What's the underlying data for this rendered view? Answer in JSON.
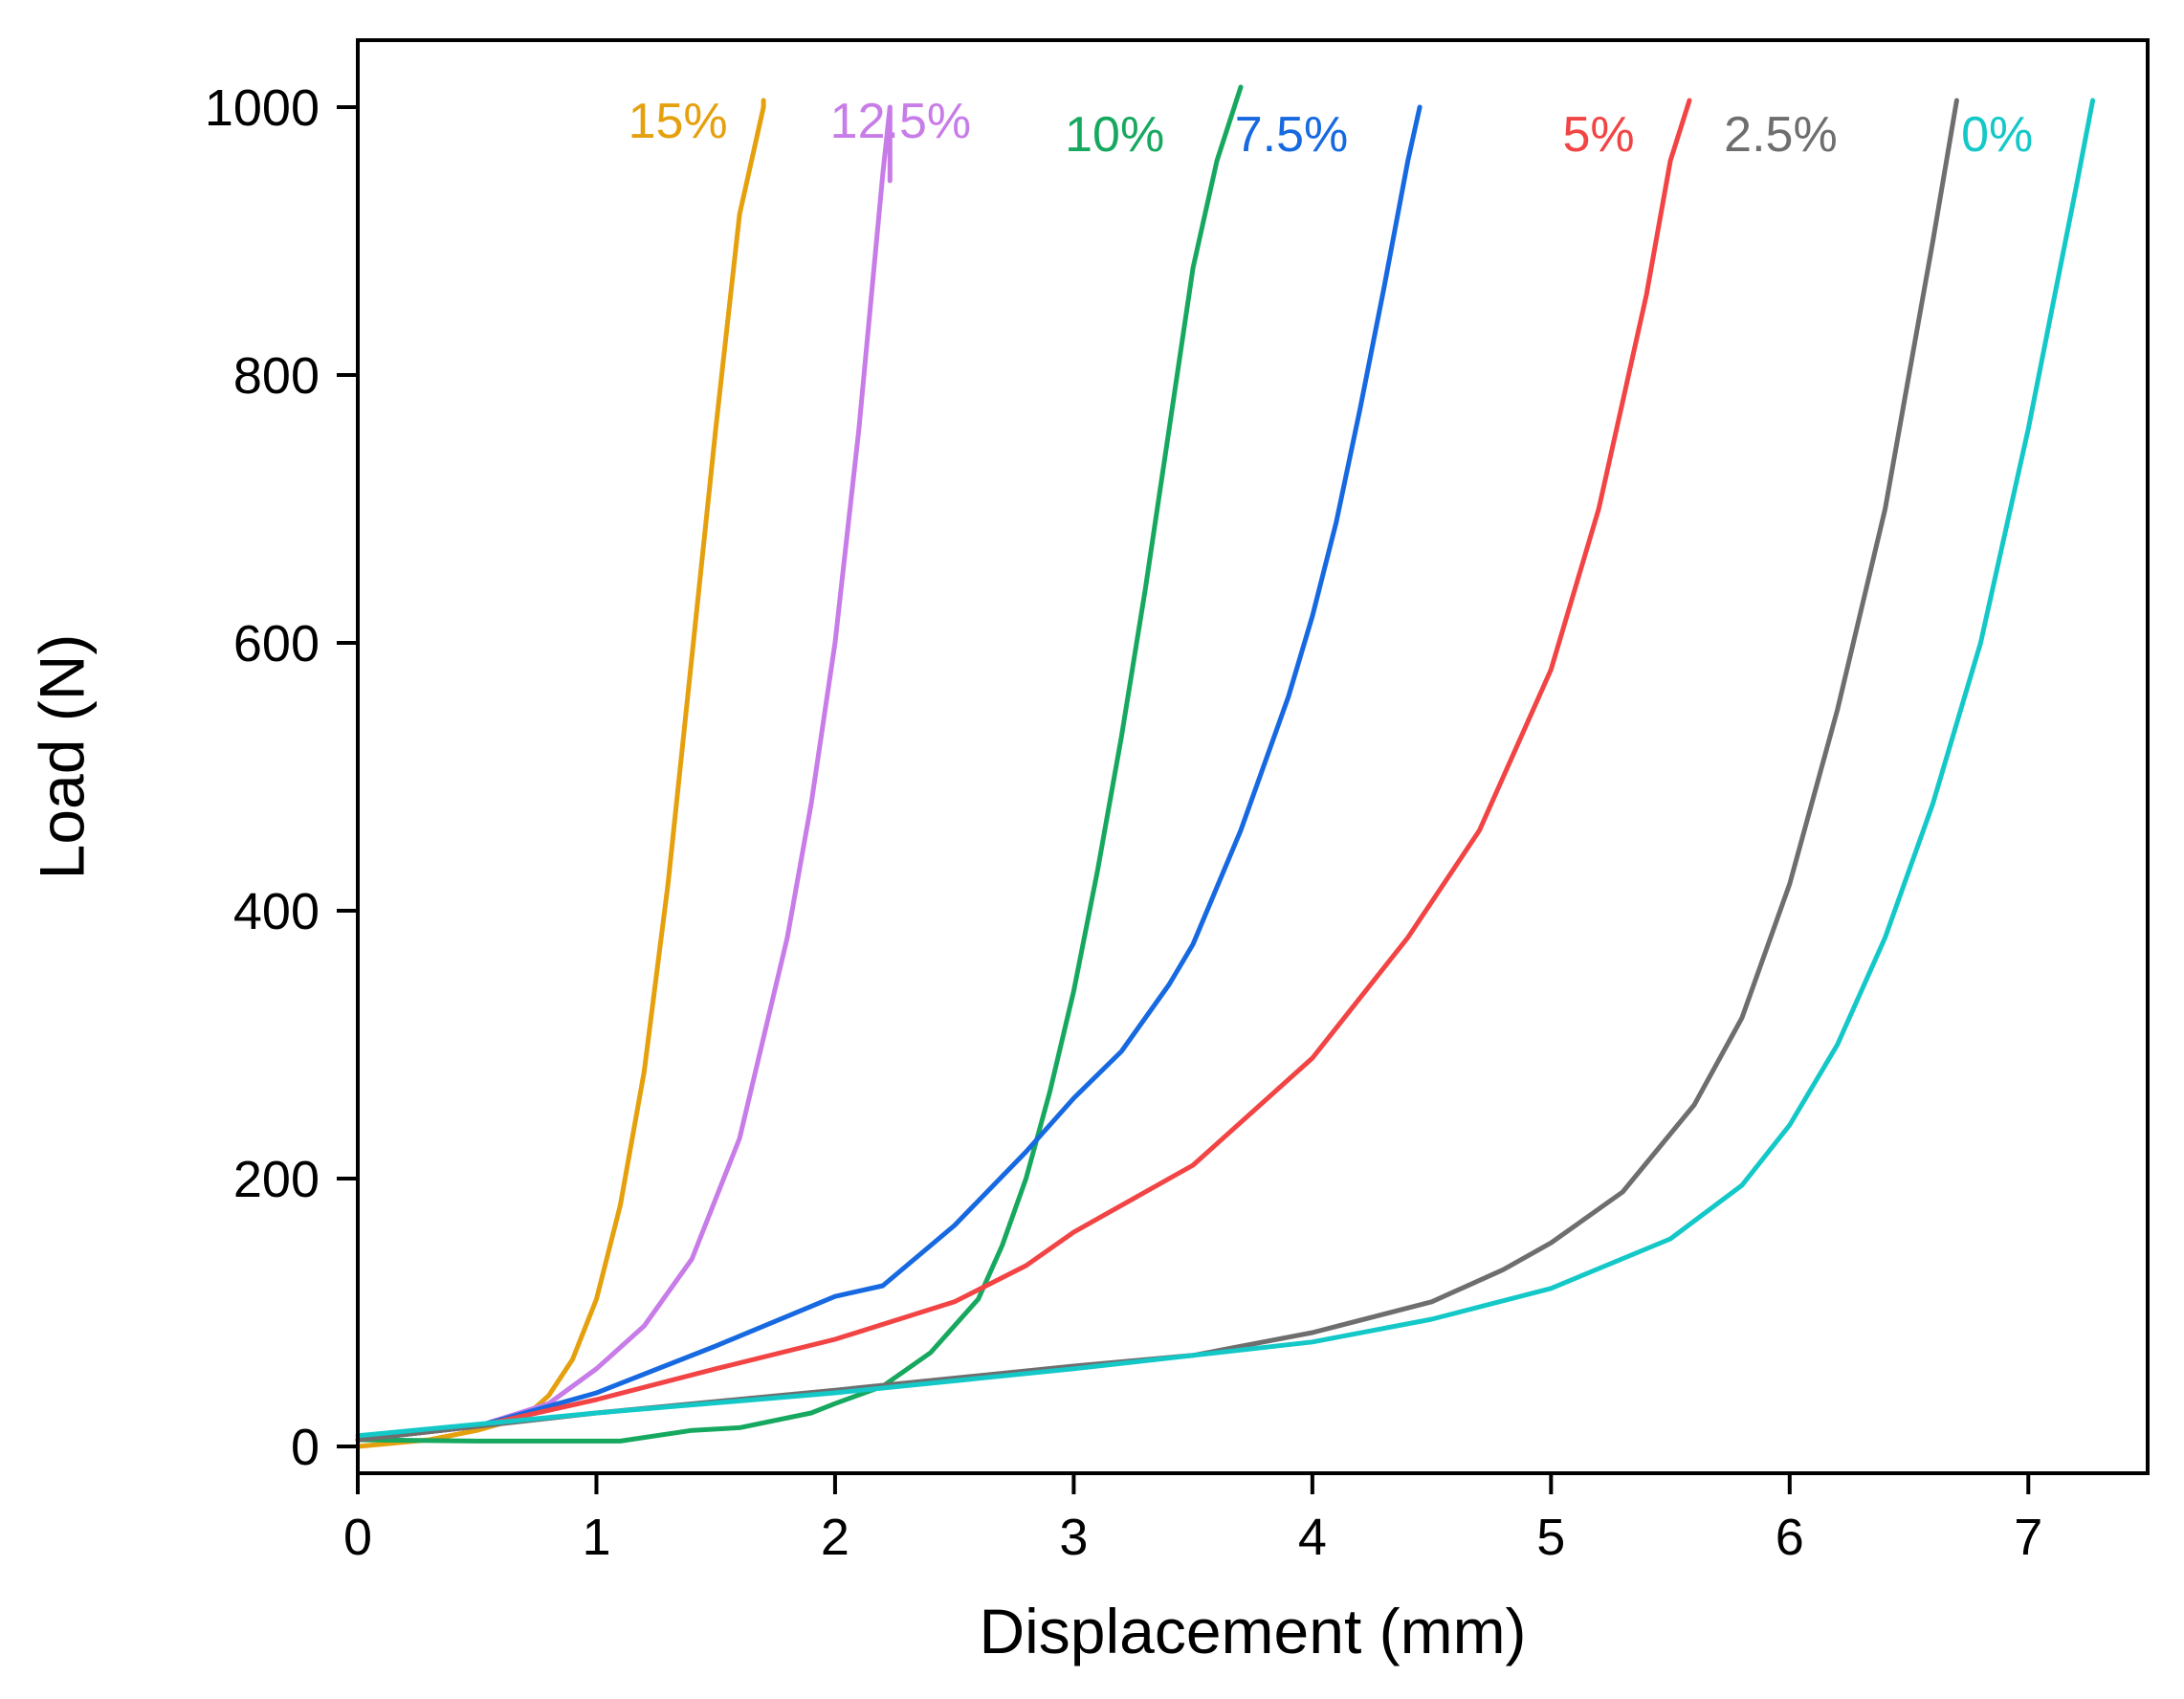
{
  "chart_data": {
    "type": "line",
    "title": "",
    "xlabel": "Displacement (mm)",
    "ylabel": "Load (N)",
    "xlim": [
      0,
      7.5
    ],
    "ylim": [
      -20,
      1050
    ],
    "x_ticks": [
      0,
      1,
      2,
      3,
      4,
      5,
      6,
      7
    ],
    "x_tick_labels": [
      "0",
      "1",
      "2",
      "3",
      "4",
      "5",
      "6",
      "7"
    ],
    "y_ticks": [
      0,
      200,
      400,
      600,
      800,
      1000
    ],
    "y_tick_labels": [
      "0",
      "200",
      "400",
      "600",
      "800",
      "1000"
    ],
    "grid": false,
    "legend": "inline labels at top of each curve",
    "series": [
      {
        "name": "15%",
        "color": "#E5A00D",
        "label_anchor": [
          1.55,
          990
        ],
        "x": [
          0,
          0.3,
          0.5,
          0.7,
          0.8,
          0.9,
          1.0,
          1.1,
          1.2,
          1.3,
          1.4,
          1.5,
          1.6,
          1.7,
          1.7
        ],
        "y": [
          0,
          5,
          12,
          22,
          38,
          65,
          110,
          180,
          280,
          420,
          590,
          760,
          920,
          1000,
          1005
        ]
      },
      {
        "name": "12.5%",
        "color": "#C77CE8",
        "label_anchor": [
          2.57,
          990
        ],
        "x": [
          0,
          0.5,
          0.8,
          1.0,
          1.2,
          1.4,
          1.6,
          1.8,
          1.9,
          2.0,
          2.1,
          2.2,
          2.23,
          2.23
        ],
        "y": [
          5,
          15,
          32,
          58,
          90,
          140,
          230,
          380,
          480,
          600,
          760,
          950,
          1000,
          945
        ]
      },
      {
        "name": "10%",
        "color": "#17A860",
        "label_anchor": [
          3.38,
          980
        ],
        "x": [
          0,
          0.5,
          1.1,
          1.4,
          1.6,
          1.9,
          2.0,
          2.2,
          2.4,
          2.6,
          2.7,
          2.8,
          2.9,
          3.0,
          3.1,
          3.2,
          3.3,
          3.4,
          3.5,
          3.6,
          3.7
        ],
        "y": [
          5,
          4,
          4,
          12,
          14,
          25,
          32,
          45,
          70,
          110,
          150,
          200,
          265,
          340,
          430,
          530,
          640,
          760,
          880,
          960,
          1015
        ]
      },
      {
        "name": "7.5%",
        "color": "#1669E0",
        "label_anchor": [
          4.15,
          980
        ],
        "x": [
          0,
          0.5,
          1.0,
          1.5,
          2.0,
          2.2,
          2.5,
          2.8,
          3.0,
          3.2,
          3.4,
          3.5,
          3.7,
          3.9,
          4.0,
          4.1,
          4.2,
          4.3,
          4.4,
          4.45
        ],
        "y": [
          5,
          15,
          40,
          75,
          112,
          120,
          165,
          220,
          260,
          295,
          345,
          375,
          460,
          560,
          620,
          690,
          775,
          865,
          960,
          1000
        ]
      },
      {
        "name": "5%",
        "color": "#F24444",
        "label_anchor": [
          5.35,
          980
        ],
        "x": [
          0,
          0.5,
          1.0,
          1.5,
          2.0,
          2.5,
          2.8,
          3.0,
          3.5,
          4.0,
          4.4,
          4.7,
          5.0,
          5.2,
          5.3,
          5.4,
          5.5,
          5.58
        ],
        "y": [
          5,
          15,
          35,
          58,
          80,
          108,
          135,
          160,
          210,
          290,
          380,
          460,
          580,
          700,
          780,
          860,
          960,
          1005
        ]
      },
      {
        "name": "2.5%",
        "color": "#6E6E6E",
        "label_anchor": [
          6.2,
          980
        ],
        "x": [
          0,
          1.0,
          2.0,
          3.0,
          3.5,
          4.0,
          4.5,
          4.8,
          5.0,
          5.3,
          5.6,
          5.8,
          6.0,
          6.2,
          6.4,
          6.5,
          6.6,
          6.7
        ],
        "y": [
          5,
          25,
          42,
          60,
          68,
          85,
          108,
          132,
          152,
          190,
          255,
          320,
          420,
          550,
          700,
          800,
          900,
          1005
        ]
      },
      {
        "name": "0%",
        "color": "#14C8C8",
        "label_anchor": [
          7.02,
          980
        ],
        "x": [
          0,
          1.0,
          2.0,
          3.0,
          4.0,
          4.5,
          5.0,
          5.5,
          5.8,
          6.0,
          6.2,
          6.4,
          6.6,
          6.8,
          6.9,
          7.0,
          7.1,
          7.2,
          7.27
        ],
        "y": [
          8,
          25,
          40,
          58,
          78,
          95,
          118,
          155,
          195,
          240,
          300,
          380,
          480,
          600,
          680,
          760,
          850,
          940,
          1005
        ]
      }
    ]
  }
}
